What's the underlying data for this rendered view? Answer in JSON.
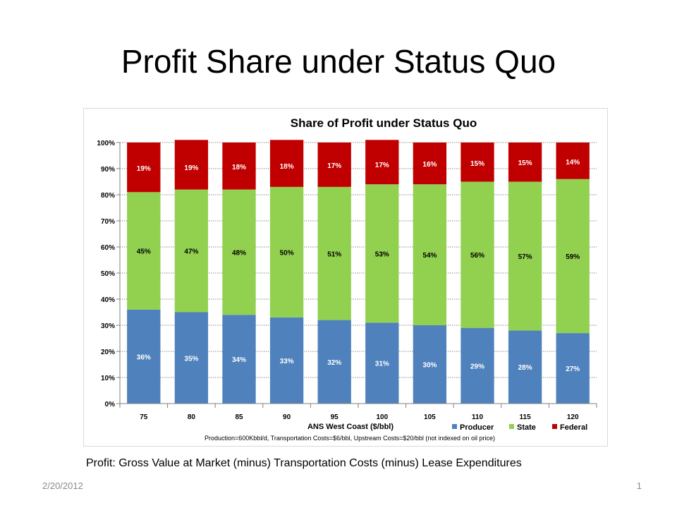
{
  "slide": {
    "title": "Profit Share under Status Quo",
    "caption": "Profit: Gross Value at Market (minus) Transportation Costs  (minus) Lease Expenditures",
    "date": "2/20/2012",
    "page_number": "1"
  },
  "chart_data": {
    "type": "bar",
    "stacked": true,
    "title": "Share of Profit under Status Quo",
    "xlabel": "ANS West Coast ($/bbl)",
    "ylabel": "",
    "ylim": [
      0,
      100
    ],
    "y_ticks": [
      "0%",
      "10%",
      "20%",
      "30%",
      "40%",
      "50%",
      "60%",
      "70%",
      "80%",
      "90%",
      "100%"
    ],
    "grid": true,
    "legend_position": "bottom-right",
    "note": "Production=600Kbbl/d, Transportation Costs=$6/bbl, Upstream Costs=$20/bbl (not indexed on oil price)",
    "categories": [
      "75",
      "80",
      "85",
      "90",
      "95",
      "100",
      "105",
      "110",
      "115",
      "120"
    ],
    "series": [
      {
        "name": "Producer",
        "color": "#4F81BD",
        "label_color": "#ffffff",
        "values": [
          36,
          35,
          34,
          33,
          32,
          31,
          30,
          29,
          28,
          27
        ],
        "labels": [
          "36%",
          "35%",
          "34%",
          "33%",
          "32%",
          "31%",
          "30%",
          "29%",
          "28%",
          "27%"
        ]
      },
      {
        "name": "State",
        "color": "#92D050",
        "label_color": "#000000",
        "values": [
          45,
          47,
          48,
          50,
          51,
          53,
          54,
          56,
          57,
          59
        ],
        "labels": [
          "45%",
          "47%",
          "48%",
          "50%",
          "51%",
          "53%",
          "54%",
          "56%",
          "57%",
          "59%"
        ]
      },
      {
        "name": "Federal",
        "color": "#C00000",
        "label_color": "#ffffff",
        "values": [
          19,
          19,
          18,
          18,
          17,
          17,
          16,
          15,
          15,
          14
        ],
        "labels": [
          "19%",
          "19%",
          "18%",
          "18%",
          "17%",
          "17%",
          "16%",
          "15%",
          "15%",
          "14%"
        ]
      }
    ]
  }
}
